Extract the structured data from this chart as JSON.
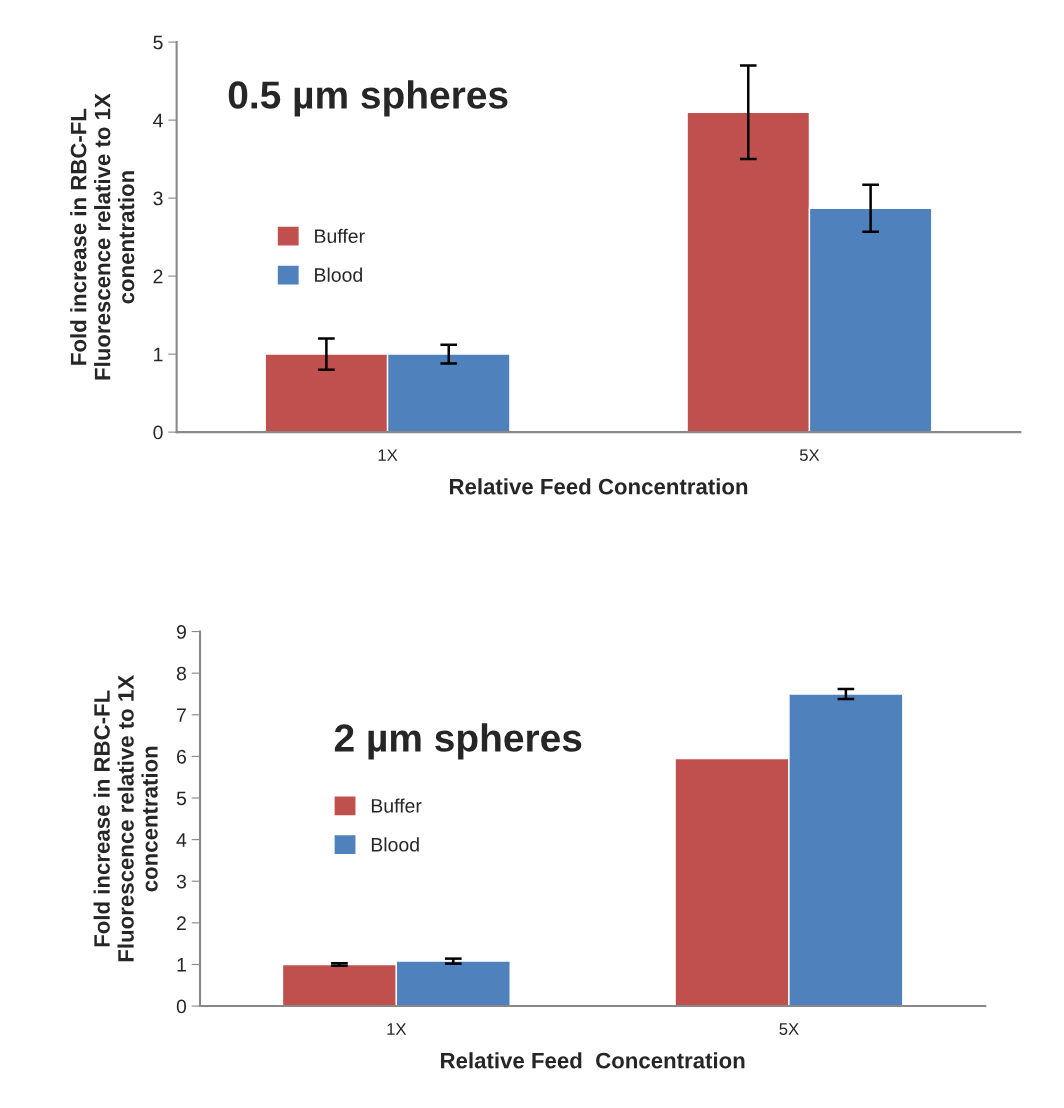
{
  "chart_data": [
    {
      "type": "bar",
      "categories": [
        "1X",
        "5X"
      ],
      "xlabel": "Relative Feed Concentration",
      "ylabel": "Fold increase in RBC-FL\nFluorescence relative to 1X\nconentration",
      "annotations": [
        "0.5 µm spheres"
      ],
      "ylim": [
        0,
        5
      ],
      "yticks": [
        0,
        1,
        2,
        3,
        4,
        5
      ],
      "grid": false,
      "legend": "left",
      "series": [
        {
          "name": "Buffer",
          "color": "#c0504d",
          "values": [
            1.0,
            4.1
          ],
          "errors": [
            0.2,
            0.6
          ]
        },
        {
          "name": "Blood",
          "color": "#4f81bd",
          "values": [
            1.0,
            2.87
          ],
          "errors": [
            0.12,
            0.3
          ]
        }
      ]
    },
    {
      "type": "bar",
      "categories": [
        "1X",
        "5X"
      ],
      "xlabel": "Relative Feed  Concentration",
      "ylabel": "Fold increase in RBC-FL\nFluorescence relative to 1X\nconcentration",
      "annotations": [
        "2 µm spheres"
      ],
      "ylim": [
        0,
        9
      ],
      "yticks": [
        0,
        1,
        2,
        3,
        4,
        5,
        6,
        7,
        8,
        9
      ],
      "grid": false,
      "legend": "left",
      "series": [
        {
          "name": "Buffer",
          "color": "#c0504d",
          "values": [
            1.0,
            5.95
          ],
          "errors": [
            0.03,
            null
          ]
        },
        {
          "name": "Blood",
          "color": "#4f81bd",
          "values": [
            1.08,
            7.5
          ],
          "errors": [
            0.06,
            0.12
          ]
        }
      ]
    }
  ]
}
